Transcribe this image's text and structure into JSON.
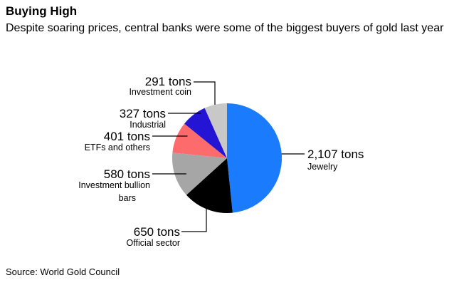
{
  "header": {
    "title": "Buying High",
    "subtitle": "Despite soaring prices, central banks were some of the biggest buyers of gold last year"
  },
  "footer": {
    "source": "Source: World Gold Council"
  },
  "chart_data": {
    "type": "pie",
    "title": "Buying High",
    "subtitle": "Despite soaring prices, central banks were some of the biggest buyers of gold last year",
    "unit": "tons",
    "slices": [
      {
        "name": "Jewelry",
        "value": 2107,
        "value_label": "2,107 tons",
        "color": "#1a7cfd"
      },
      {
        "name": "Official sector",
        "value": 650,
        "value_label": "650 tons",
        "color": "#000000"
      },
      {
        "name": "Investment bullion bars",
        "value": 580,
        "value_label": "580 tons",
        "color": "#a6a6a6"
      },
      {
        "name": "ETFs and others",
        "value": 401,
        "value_label": "401 tons",
        "color": "#fd6b6d"
      },
      {
        "name": "Industrial",
        "value": 327,
        "value_label": "327 tons",
        "color": "#2414d4"
      },
      {
        "name": "Investment coin",
        "value": 291,
        "value_label": "291 tons",
        "color": "#c8c8c8"
      }
    ],
    "start": "top",
    "direction": "clockwise",
    "legend": "none"
  }
}
